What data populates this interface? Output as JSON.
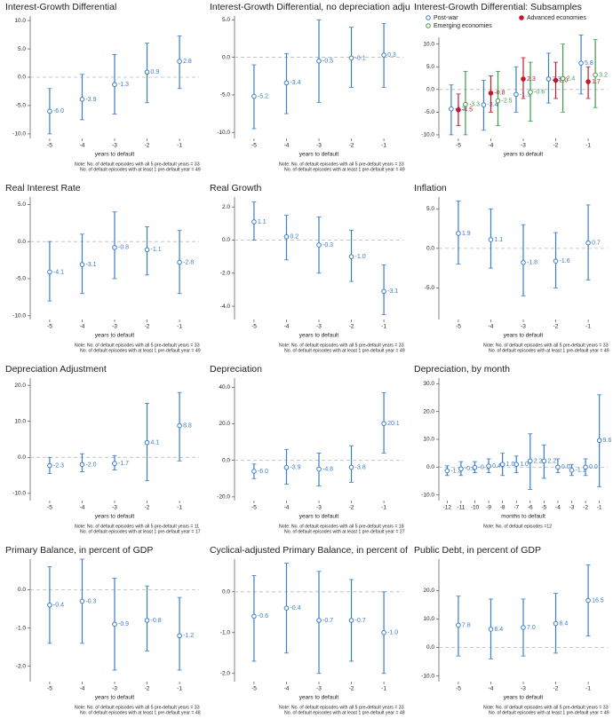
{
  "chart_data": [
    {
      "type": "errorbar",
      "title": "Interest-Growth Differential",
      "x": [
        -5,
        -4,
        -3,
        -2,
        -1
      ],
      "values": [
        -6.0,
        -3.9,
        -1.3,
        0.9,
        2.8
      ],
      "value_labels": [
        "-6.0",
        "-3.9",
        "-1.3",
        "0.9",
        "2.8"
      ],
      "lower": [
        -10,
        -7.5,
        -6.5,
        -4.5,
        -2
      ],
      "upper": [
        -2,
        0.5,
        4,
        6,
        7.3
      ],
      "color": "#3a7dc9",
      "xlim": [
        -5.6,
        -0.4
      ],
      "xticks": [
        -5,
        -4,
        -3,
        -2,
        -1
      ],
      "ylim": [
        -10.8,
        10.8
      ],
      "yticks": [
        {
          "value": -10,
          "label": "-10.0"
        },
        {
          "value": -5,
          "label": "-5.0"
        },
        {
          "value": 0,
          "label": "0.0"
        },
        {
          "value": 5,
          "label": "5.0"
        },
        {
          "value": 10,
          "label": "10.0"
        }
      ],
      "xlabel": "years to default",
      "notes": [
        "Note: No. of default episodes with all 5 pre-default years = 33",
        "No. of default episodes with at least 1 pre-default year = 49"
      ]
    },
    {
      "type": "errorbar",
      "title": "Interest-Growth Differential, no depreciation adju",
      "x": [
        -5,
        -4,
        -3,
        -2,
        -1
      ],
      "values": [
        -5.2,
        -3.4,
        -0.5,
        -0.1,
        0.3
      ],
      "value_labels": [
        "-5.2",
        "-3.4",
        "-0.5",
        "-0.1",
        "0.3"
      ],
      "lower": [
        -9.5,
        -7.5,
        -6,
        -4,
        -4
      ],
      "upper": [
        -1,
        0.5,
        5,
        4,
        4.5
      ],
      "color": "#3a7dc9",
      "xlim": [
        -5.6,
        -0.4
      ],
      "xticks": [
        -5,
        -4,
        -3,
        -2,
        -1
      ],
      "ylim": [
        -10.8,
        5.5
      ],
      "yticks": [
        {
          "value": -10,
          "label": "-10.0"
        },
        {
          "value": -5,
          "label": "-5.0"
        },
        {
          "value": 0,
          "label": "0.0"
        },
        {
          "value": 5,
          "label": "5.0"
        }
      ],
      "xlabel": "years to default",
      "notes": [
        "Note: No. of default episodes with all 5 pre-default years = 33",
        "No. of default episodes with at least 1 pre-default year = 49"
      ]
    },
    {
      "type": "errorbar",
      "title": "Interest-Growth Differential: Subsamples",
      "x": [
        -5,
        -4,
        -3,
        -2,
        -1
      ],
      "series": [
        {
          "name": "Post-war",
          "color": "#3a7dc9",
          "values": [
            -4.3,
            -3.4,
            -1.1,
            2.3,
            5.8
          ],
          "value_labels": [
            "-4.3",
            "-3.4",
            "-1.1",
            "2.3",
            "5.8"
          ],
          "lower": [
            -10,
            -9,
            -5,
            -3,
            -1
          ],
          "upper": [
            1,
            2,
            5,
            8,
            12
          ]
        },
        {
          "name": "Advanced economies",
          "color": "#c0182e",
          "values": [
            -4.5,
            -0.8,
            2.3,
            2.0,
            1.7
          ],
          "value_labels": [
            "-4.5",
            "-0.8",
            "2.3",
            "2.0",
            "1.7"
          ],
          "lower": [
            -8,
            -5,
            -2,
            -2,
            -2
          ],
          "upper": [
            -1,
            3,
            7,
            6,
            5
          ]
        },
        {
          "name": "Emerging economies",
          "color": "#3f9a4a",
          "values": [
            -3.3,
            -2.5,
            -0.6,
            2.4,
            3.2
          ],
          "value_labels": [
            "-3.3",
            "-2.5",
            "-0.6",
            "2.4",
            "3.2"
          ],
          "lower": [
            -10,
            -8,
            -7,
            -5,
            -4
          ],
          "upper": [
            4,
            4,
            6,
            10,
            11
          ]
        }
      ],
      "xlim": [
        -5.6,
        -0.4
      ],
      "xticks": [
        -5,
        -4,
        -3,
        -2,
        -1
      ],
      "ylim": [
        -10.8,
        11.5
      ],
      "yticks": [
        {
          "value": -10,
          "label": "-10.0"
        },
        {
          "value": -5,
          "label": "-5.0"
        },
        {
          "value": 0,
          "label": "0.0"
        },
        {
          "value": 5,
          "label": "5.0"
        },
        {
          "value": 10,
          "label": "10.0"
        }
      ],
      "xlabel": "years to default"
    },
    {
      "type": "errorbar",
      "title": "Real Interest Rate",
      "x": [
        -5,
        -4,
        -3,
        -2,
        -1
      ],
      "values": [
        -4.1,
        -3.1,
        -0.8,
        -1.1,
        -2.8
      ],
      "value_labels": [
        "-4.1",
        "-3.1",
        "-0.8",
        "-1.1",
        "-2.8"
      ],
      "lower": [
        -8,
        -7,
        -5,
        -4.5,
        -7
      ],
      "upper": [
        0,
        1,
        4,
        2,
        1.5
      ],
      "color": "#3a7dc9",
      "xlim": [
        -5.6,
        -0.4
      ],
      "xticks": [
        -5,
        -4,
        -3,
        -2,
        -1
      ],
      "ylim": [
        -10.5,
        6
      ],
      "yticks": [
        {
          "value": -10,
          "label": "-10.0"
        },
        {
          "value": -5,
          "label": "-5.0"
        },
        {
          "value": 0,
          "label": "0.0"
        },
        {
          "value": 5,
          "label": "5.0"
        }
      ],
      "xlabel": "years to default",
      "notes": [
        "Note: No. of default episodes with all 5 pre-default years = 33",
        "No. of default episodes with at least 1 pre-default year = 49"
      ]
    },
    {
      "type": "errorbar",
      "title": "Real Growth",
      "x": [
        -5,
        -4,
        -3,
        -2,
        -1
      ],
      "values": [
        1.1,
        0.2,
        -0.3,
        -1.0,
        -3.1
      ],
      "value_labels": [
        "1.1",
        "0.2",
        "-0.3",
        "-1.0",
        "-3.1"
      ],
      "lower": [
        0,
        -1.2,
        -2,
        -2.5,
        -4.5
      ],
      "upper": [
        2.3,
        1.5,
        1.4,
        0.6,
        -1.5
      ],
      "color": "#3a7dc9",
      "xlim": [
        -5.6,
        -0.4
      ],
      "xticks": [
        -5,
        -4,
        -3,
        -2,
        -1
      ],
      "ylim": [
        -4.8,
        2.6
      ],
      "yticks": [
        {
          "value": -4,
          "label": "-4.0"
        },
        {
          "value": -2,
          "label": "-2.0"
        },
        {
          "value": 0,
          "label": "0.0"
        },
        {
          "value": 2,
          "label": "2.0"
        }
      ],
      "xlabel": "years to default",
      "notes": [
        "Note: No. of default episodes with all 5 pre-default years = 33",
        "No. of default episodes with at least 1 pre-default year = 49"
      ]
    },
    {
      "type": "errorbar",
      "title": "Inflation",
      "x": [
        -5,
        -4,
        -3,
        -2,
        -1
      ],
      "values": [
        1.9,
        1.1,
        -1.8,
        -1.6,
        0.7
      ],
      "value_labels": [
        "1.9",
        "1.1",
        "-1.8",
        "-1.6",
        "0.7"
      ],
      "lower": [
        -2,
        -2.5,
        -6,
        -5,
        -4
      ],
      "upper": [
        6,
        5,
        3,
        2,
        5.5
      ],
      "color": "#3a7dc9",
      "xlim": [
        -5.6,
        -0.4
      ],
      "xticks": [
        -5,
        -4,
        -3,
        -2,
        -1
      ],
      "ylim": [
        -9,
        6.5
      ],
      "yticks": [
        {
          "value": -5,
          "label": "-5.0"
        },
        {
          "value": 0,
          "label": "0.0"
        },
        {
          "value": 5,
          "label": "5.0"
        }
      ],
      "xlabel": "years to default",
      "notes": [
        "Note: No. of default episodes with all 5 pre-default years = 33",
        "No. of default episodes with at least 1 pre-default year = 49"
      ]
    },
    {
      "type": "errorbar",
      "title": "Depreciation Adjustment",
      "x": [
        -5,
        -4,
        -3,
        -2,
        -1
      ],
      "values": [
        -2.3,
        -2.0,
        -1.7,
        4.1,
        8.8
      ],
      "value_labels": [
        "-2.3",
        "-2.0",
        "-1.7",
        "4.1",
        "8.8"
      ],
      "lower": [
        -4.5,
        -4,
        -3.5,
        -6.5,
        -1
      ],
      "upper": [
        0,
        1,
        0.5,
        15,
        18
      ],
      "color": "#3a7dc9",
      "xlim": [
        -5.6,
        -0.4
      ],
      "xticks": [
        -5,
        -4,
        -3,
        -2,
        -1
      ],
      "ylim": [
        -12,
        22
      ],
      "yticks": [
        {
          "value": -10,
          "label": "-10.0"
        },
        {
          "value": 0,
          "label": "0.0"
        },
        {
          "value": 10,
          "label": "10.0"
        },
        {
          "value": 20,
          "label": "20.0"
        }
      ],
      "xlabel": "years to default",
      "notes": [
        "Note: No. of default episodes with all 5 pre-default years = 11",
        "No. of default episodes with at least 1 pre-default year = 17"
      ]
    },
    {
      "type": "errorbar",
      "title": "Depreciation",
      "x": [
        -5,
        -4,
        -3,
        -2,
        -1
      ],
      "values": [
        -6.0,
        -3.9,
        -4.8,
        -3.8,
        20.1
      ],
      "value_labels": [
        "-6.0",
        "-3.9",
        "-4.8",
        "-3.8",
        "20.1"
      ],
      "lower": [
        -10,
        -13,
        -14,
        -12,
        4
      ],
      "upper": [
        -2,
        6,
        4,
        8,
        37
      ],
      "color": "#3a7dc9",
      "xlim": [
        -5.6,
        -0.4
      ],
      "xticks": [
        -5,
        -4,
        -3,
        -2,
        -1
      ],
      "ylim": [
        -22,
        45
      ],
      "yticks": [
        {
          "value": -20,
          "label": "-20.0"
        },
        {
          "value": 0,
          "label": "0.0"
        },
        {
          "value": 20,
          "label": "20.0"
        },
        {
          "value": 40,
          "label": "40.0"
        }
      ],
      "xlabel": "years to default",
      "notes": [
        "Note: No. of default episodes with all 5 pre-default years = 18",
        "No. of default episodes with at least 1 pre-default year = 27"
      ]
    },
    {
      "type": "errorbar",
      "title": "Depreciation, by month",
      "x": [
        -12,
        -11,
        -10,
        -9,
        -8,
        -7,
        -6,
        -5,
        -4,
        -3,
        -2,
        -1
      ],
      "values": [
        -1.3,
        -0.6,
        -0.1,
        0.4,
        1.0,
        1.0,
        2.2,
        2.2,
        0.0,
        -1.1,
        0.0,
        9.6
      ],
      "value_labels": [
        "-1.3",
        "-0.6",
        "-0.1",
        "0.4",
        "1.0",
        "1.0",
        "2.2",
        "2.2",
        "0.0",
        "-1.1",
        "0.0",
        "9.6"
      ],
      "lower": [
        -3,
        -3,
        -2,
        -2,
        -3,
        -2,
        -8,
        -4,
        -2,
        -3,
        -3,
        -7
      ],
      "upper": [
        0.5,
        2,
        2,
        3,
        5,
        4,
        12,
        8,
        3,
        1,
        3,
        26
      ],
      "color": "#3a7dc9",
      "xlim": [
        -12.6,
        -0.4
      ],
      "xticks": [
        -12,
        -11,
        -10,
        -9,
        -8,
        -7,
        -6,
        -5,
        -4,
        -3,
        -2,
        -1
      ],
      "ylim": [
        -12,
        32
      ],
      "yticks": [
        {
          "value": -10,
          "label": "-10.0"
        },
        {
          "value": 0,
          "label": "0.0"
        },
        {
          "value": 10,
          "label": "10.0"
        },
        {
          "value": 20,
          "label": "20.0"
        },
        {
          "value": 30,
          "label": "30.0"
        }
      ],
      "xlabel": "months to default",
      "notes": [
        "Note: No. of default episodes =12"
      ]
    },
    {
      "type": "errorbar",
      "title": "Primary Balance, in percent of GDP",
      "x": [
        -5,
        -4,
        -3,
        -2,
        -1
      ],
      "values": [
        -0.4,
        -0.3,
        -0.9,
        -0.8,
        -1.2
      ],
      "value_labels": [
        "-0.4",
        "-0.3",
        "-0.9",
        "-0.8",
        "-1.2"
      ],
      "lower": [
        -1.4,
        -1.4,
        -2.1,
        -1.6,
        -2.1
      ],
      "upper": [
        0.6,
        0.8,
        0.3,
        0.1,
        -0.2
      ],
      "color": "#3a7dc9",
      "xlim": [
        -5.6,
        -0.4
      ],
      "xticks": [
        -5,
        -4,
        -3,
        -2,
        -1
      ],
      "ylim": [
        -2.4,
        0.8
      ],
      "yticks": [
        {
          "value": -2,
          "label": "-2.0"
        },
        {
          "value": -1,
          "label": "-1.0"
        },
        {
          "value": 0,
          "label": "0.0"
        }
      ],
      "xlabel": "years to default",
      "notes": [
        "Note: No. of default episodes with all 5 pre-default years = 33",
        "No. of default episodes with at least 1 pre-default year = 48"
      ]
    },
    {
      "type": "errorbar",
      "title": "Cyclical-adjusted Primary Balance, in percent of",
      "x": [
        -5,
        -4,
        -3,
        -2,
        -1
      ],
      "values": [
        -0.6,
        -0.4,
        -0.7,
        -0.7,
        -1.0
      ],
      "value_labels": [
        "-0.6",
        "-0.4",
        "-0.7",
        "-0.7",
        "-1.0"
      ],
      "lower": [
        -1.7,
        -1.5,
        -2,
        -1.7,
        -2
      ],
      "upper": [
        0.4,
        0.7,
        0.5,
        0.3,
        0
      ],
      "color": "#3a7dc9",
      "xlim": [
        -5.6,
        -0.4
      ],
      "xticks": [
        -5,
        -4,
        -3,
        -2,
        -1
      ],
      "ylim": [
        -2.2,
        0.8
      ],
      "yticks": [
        {
          "value": -2,
          "label": "-2.0"
        },
        {
          "value": -1,
          "label": "-1.0"
        },
        {
          "value": 0,
          "label": "0.0"
        }
      ],
      "xlabel": "years to default",
      "notes": [
        "Note: No. of default episodes with all 5 pre-default years = 33",
        "No. of default episodes with at least 1 pre-default year = 48"
      ]
    },
    {
      "type": "errorbar",
      "title": "Public Debt, in percent of GDP",
      "x": [
        -5,
        -4,
        -3,
        -2,
        -1
      ],
      "values": [
        7.8,
        6.4,
        7.0,
        8.4,
        16.5
      ],
      "value_labels": [
        "7.8",
        "6.4",
        "7.0",
        "8.4",
        "16.5"
      ],
      "lower": [
        -3,
        -4,
        -3,
        -2,
        4
      ],
      "upper": [
        18,
        17,
        17,
        19,
        29
      ],
      "color": "#3a7dc9",
      "xlim": [
        -5.6,
        -0.4
      ],
      "xticks": [
        -5,
        -4,
        -3,
        -2,
        -1
      ],
      "ylim": [
        -12,
        31
      ],
      "yticks": [
        {
          "value": -10,
          "label": "-10.0"
        },
        {
          "value": 0,
          "label": "0.0"
        },
        {
          "value": 10,
          "label": "10.0"
        },
        {
          "value": 20,
          "label": "20.0"
        }
      ],
      "xlabel": "years to default",
      "notes": [
        "Note: No. of default episodes with all 5 pre-default years = 33",
        "No. of default episodes with at least 1 pre-default year = 49"
      ]
    }
  ]
}
